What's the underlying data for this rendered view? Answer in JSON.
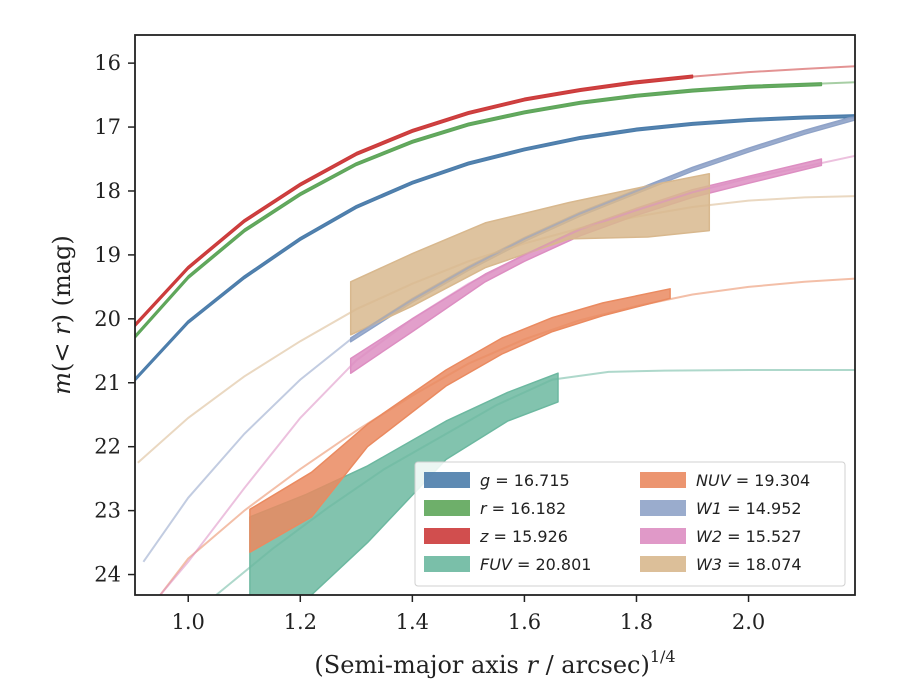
{
  "chart_data": {
    "type": "line",
    "xlabel_main": "(Semi-major axis ",
    "xlabel_var": "r",
    "xlabel_rest": " / arcsec)",
    "xlabel_exp": "1/4",
    "ylabel_pre": "m",
    "ylabel_mid": "(< ",
    "ylabel_var": "r",
    "ylabel_post": ") (mag)",
    "xlim": [
      0.905,
      2.19
    ],
    "ylim": [
      24.32,
      15.56
    ],
    "y_inverted": true,
    "x_ticks": [
      1.0,
      1.2,
      1.4,
      1.6,
      1.8,
      2.0
    ],
    "x_tick_labels": [
      "1.0",
      "1.2",
      "1.4",
      "1.6",
      "1.8",
      "2.0"
    ],
    "y_ticks": [
      16,
      17,
      18,
      19,
      20,
      21,
      22,
      23,
      24
    ],
    "y_tick_labels": [
      "16",
      "17",
      "18",
      "19",
      "20",
      "21",
      "22",
      "23",
      "24"
    ],
    "legend_placement": "lower-right",
    "series": [
      {
        "key": "g",
        "band": "g",
        "value": "16.715",
        "color": "#4c7dab",
        "model": {
          "x": [
            0.905,
            1.0,
            1.1,
            1.2,
            1.3,
            1.4,
            1.5,
            1.6,
            1.7,
            1.8,
            1.9,
            2.0,
            2.1,
            2.19
          ],
          "y": [
            20.95,
            20.05,
            19.35,
            18.75,
            18.25,
            17.87,
            17.57,
            17.35,
            17.17,
            17.04,
            16.95,
            16.89,
            16.85,
            16.83
          ]
        },
        "data": {
          "x": [
            0.905,
            1.0,
            1.1,
            1.2,
            1.3,
            1.4,
            1.5,
            1.6,
            1.7,
            1.8,
            1.9,
            2.0,
            2.1,
            2.19
          ],
          "lo": [
            20.93,
            20.03,
            19.33,
            18.73,
            18.23,
            17.85,
            17.55,
            17.33,
            17.15,
            17.02,
            16.93,
            16.87,
            16.83,
            16.81
          ],
          "hi": [
            20.97,
            20.07,
            19.37,
            18.77,
            18.27,
            17.89,
            17.59,
            17.37,
            17.19,
            17.06,
            16.97,
            16.91,
            16.87,
            16.85
          ]
        }
      },
      {
        "key": "r",
        "band": "r",
        "value": "16.182",
        "color": "#5ea65a",
        "model": {
          "x": [
            0.905,
            1.0,
            1.1,
            1.2,
            1.3,
            1.4,
            1.5,
            1.6,
            1.7,
            1.8,
            1.9,
            2.0,
            2.1,
            2.19
          ],
          "y": [
            20.28,
            19.35,
            18.62,
            18.05,
            17.58,
            17.23,
            16.96,
            16.77,
            16.62,
            16.51,
            16.43,
            16.37,
            16.33,
            16.3
          ]
        },
        "data": {
          "x": [
            0.905,
            1.0,
            1.1,
            1.2,
            1.3,
            1.4,
            1.5,
            1.6,
            1.7,
            1.8,
            1.9,
            2.0,
            2.13
          ],
          "lo": [
            20.26,
            19.33,
            18.6,
            18.03,
            17.56,
            17.21,
            16.94,
            16.75,
            16.6,
            16.49,
            16.41,
            16.35,
            16.31
          ],
          "hi": [
            20.3,
            19.37,
            18.64,
            18.07,
            17.6,
            17.25,
            16.98,
            16.79,
            16.64,
            16.53,
            16.45,
            16.39,
            16.35
          ]
        }
      },
      {
        "key": "z",
        "band": "z",
        "value": "15.926",
        "color": "#cc3b3b",
        "model": {
          "x": [
            0.905,
            1.0,
            1.1,
            1.2,
            1.3,
            1.4,
            1.5,
            1.6,
            1.7,
            1.8,
            1.9,
            2.0,
            2.1,
            2.19
          ],
          "y": [
            20.1,
            19.2,
            18.47,
            17.9,
            17.42,
            17.06,
            16.78,
            16.57,
            16.42,
            16.3,
            16.21,
            16.14,
            16.09,
            16.05
          ]
        },
        "data": {
          "x": [
            0.905,
            1.0,
            1.1,
            1.2,
            1.3,
            1.4,
            1.5,
            1.6,
            1.7,
            1.8,
            1.9
          ],
          "lo": [
            20.08,
            19.18,
            18.45,
            17.88,
            17.4,
            17.04,
            16.76,
            16.55,
            16.4,
            16.28,
            16.19
          ],
          "hi": [
            20.12,
            19.22,
            18.49,
            17.92,
            17.44,
            17.08,
            16.8,
            16.59,
            16.44,
            16.32,
            16.23
          ]
        }
      },
      {
        "key": "FUV",
        "band": "FUV",
        "value": "20.801",
        "color": "#6cb8a0",
        "model": {
          "x": [
            1.05,
            1.15,
            1.25,
            1.35,
            1.45,
            1.55,
            1.65,
            1.75,
            1.85,
            2.0,
            2.19
          ],
          "y": [
            24.32,
            23.6,
            22.95,
            22.35,
            21.85,
            21.35,
            20.95,
            20.83,
            20.81,
            20.8,
            20.8
          ]
        },
        "data": {
          "x": [
            1.11,
            1.21,
            1.32,
            1.46,
            1.57,
            1.66
          ],
          "lo": [
            23.1,
            22.75,
            22.3,
            21.6,
            21.15,
            20.85
          ],
          "hi": [
            24.4,
            24.4,
            23.5,
            22.2,
            21.6,
            21.3
          ]
        }
      },
      {
        "key": "NUV",
        "band": "NUV",
        "value": "19.304",
        "color": "#ea8a60",
        "model": {
          "x": [
            0.95,
            1.0,
            1.1,
            1.2,
            1.3,
            1.4,
            1.5,
            1.6,
            1.7,
            1.8,
            1.9,
            2.0,
            2.1,
            2.19
          ],
          "y": [
            24.32,
            23.75,
            23.0,
            22.35,
            21.75,
            21.2,
            20.7,
            20.32,
            20.02,
            19.8,
            19.62,
            19.5,
            19.42,
            19.37
          ]
        },
        "data": {
          "x": [
            1.11,
            1.22,
            1.32,
            1.46,
            1.56,
            1.65,
            1.74,
            1.86
          ],
          "lo": [
            22.98,
            22.4,
            21.65,
            20.8,
            20.3,
            19.98,
            19.75,
            19.53
          ],
          "hi": [
            23.65,
            23.1,
            22.0,
            21.05,
            20.55,
            20.2,
            19.95,
            19.68
          ]
        }
      },
      {
        "key": "W1",
        "band": "W1",
        "value": "14.952",
        "color": "#8fa3c8",
        "model": {
          "x": [
            0.92,
            1.0,
            1.1,
            1.2,
            1.3,
            1.4,
            1.5,
            1.6,
            1.7,
            1.8,
            1.9,
            2.0,
            2.1,
            2.19
          ],
          "y": [
            23.8,
            22.8,
            21.8,
            20.95,
            20.25,
            19.7,
            19.2,
            18.75,
            18.35,
            18.0,
            17.65,
            17.35,
            17.07,
            16.85
          ]
        },
        "data": {
          "x": [
            1.29,
            1.4,
            1.5,
            1.6,
            1.7,
            1.8,
            1.9,
            2.0,
            2.1,
            2.19
          ],
          "lo": [
            20.3,
            19.68,
            19.18,
            18.73,
            18.33,
            17.98,
            17.63,
            17.33,
            17.05,
            16.83
          ],
          "hi": [
            20.36,
            19.74,
            19.24,
            18.79,
            18.39,
            18.04,
            17.69,
            17.39,
            17.11,
            16.89
          ]
        }
      },
      {
        "key": "W2",
        "band": "W2",
        "value": "15.527",
        "color": "#dd8ec2",
        "model": {
          "x": [
            0.95,
            1.0,
            1.1,
            1.2,
            1.3,
            1.4,
            1.5,
            1.6,
            1.7,
            1.8,
            1.9,
            2.0,
            2.1,
            2.19
          ],
          "y": [
            24.32,
            23.8,
            22.65,
            21.55,
            20.65,
            20.0,
            19.45,
            19.0,
            18.6,
            18.3,
            18.02,
            17.8,
            17.62,
            17.45
          ]
        },
        "data": {
          "x": [
            1.29,
            1.4,
            1.53,
            1.6,
            1.7,
            1.8,
            1.9,
            2.0,
            2.13
          ],
          "lo": [
            20.62,
            20.0,
            19.3,
            19.0,
            18.58,
            18.27,
            17.98,
            17.77,
            17.5
          ],
          "hi": [
            20.85,
            20.2,
            19.42,
            19.1,
            18.7,
            18.38,
            18.1,
            17.88,
            17.6
          ]
        }
      },
      {
        "key": "W3",
        "band": "W3",
        "value": "18.074",
        "color": "#d8b88e",
        "model": {
          "x": [
            0.91,
            1.0,
            1.1,
            1.2,
            1.3,
            1.4,
            1.5,
            1.6,
            1.7,
            1.8,
            1.9,
            2.0,
            2.1,
            2.19
          ],
          "y": [
            22.25,
            21.55,
            20.9,
            20.35,
            19.85,
            19.45,
            19.1,
            18.82,
            18.58,
            18.4,
            18.25,
            18.15,
            18.1,
            18.08
          ]
        },
        "data": {
          "x": [
            1.29,
            1.4,
            1.53,
            1.68,
            1.82,
            1.93
          ],
          "lo": [
            19.42,
            18.98,
            18.5,
            18.18,
            17.92,
            17.73
          ],
          "hi": [
            20.25,
            19.8,
            19.2,
            18.75,
            18.72,
            18.62
          ]
        }
      }
    ],
    "legend": {
      "left": [
        "g",
        "r",
        "z",
        "FUV"
      ],
      "right": [
        "NUV",
        "W1",
        "W2",
        "W3"
      ]
    }
  }
}
